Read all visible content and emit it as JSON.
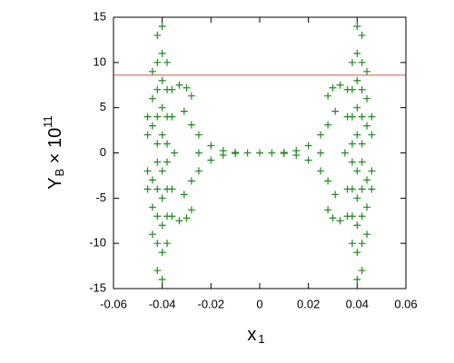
{
  "chart_data": {
    "type": "scatter",
    "xlabel": [
      "x",
      "1"
    ],
    "ylabel": [
      "Y",
      "B",
      " × 10",
      "11"
    ],
    "xlim": [
      -0.06,
      0.06
    ],
    "xticks": [
      -0.06,
      -0.04,
      -0.02,
      0,
      0.02,
      0.04,
      0.06
    ],
    "ylim": [
      -15,
      15
    ],
    "yticks": [
      -15,
      -10,
      -5,
      0,
      5,
      10,
      15
    ],
    "color": "#1f8a1f",
    "reference_line": {
      "y": 8.6,
      "color": "#e07a72"
    },
    "x": [
      -0.046,
      -0.046,
      -0.046,
      -0.046,
      -0.044,
      -0.044,
      -0.044,
      -0.044,
      -0.044,
      -0.044,
      -0.042,
      -0.042,
      -0.042,
      -0.042,
      -0.042,
      -0.042,
      -0.042,
      -0.042,
      -0.042,
      -0.042,
      -0.04,
      -0.04,
      -0.04,
      -0.04,
      -0.04,
      -0.04,
      -0.04,
      -0.04,
      -0.04,
      -0.04,
      -0.038,
      -0.038,
      -0.038,
      -0.038,
      -0.038,
      -0.038,
      -0.038,
      -0.038,
      -0.036,
      -0.036,
      -0.036,
      -0.036,
      -0.033,
      -0.033,
      -0.03,
      -0.03,
      -0.028,
      -0.028,
      -0.031,
      -0.031,
      -0.028,
      -0.028,
      -0.025,
      -0.025,
      -0.02,
      -0.02,
      -0.015,
      -0.015,
      -0.01,
      -0.01,
      -0.005,
      -0.035,
      -0.025,
      0,
      0.005,
      0.01,
      0.01,
      0.015,
      0.015,
      0.02,
      0.02,
      0.025,
      0.025,
      0.028,
      0.028,
      0.031,
      0.031,
      0.025,
      0.035,
      0.028,
      0.028,
      0.03,
      0.03,
      0.033,
      0.033,
      0.036,
      0.036,
      0.036,
      0.036,
      0.038,
      0.038,
      0.038,
      0.038,
      0.038,
      0.038,
      0.038,
      0.038,
      0.04,
      0.04,
      0.04,
      0.04,
      0.04,
      0.04,
      0.04,
      0.04,
      0.04,
      0.04,
      0.042,
      0.042,
      0.042,
      0.042,
      0.042,
      0.042,
      0.042,
      0.042,
      0.042,
      0.042,
      0.044,
      0.044,
      0.044,
      0.044,
      0.044,
      0.044,
      0.046,
      0.046,
      0.046,
      0.046
    ],
    "values": [
      -4,
      -2,
      2,
      4,
      -9,
      -6,
      -3,
      3,
      6,
      9,
      -13,
      -10,
      -7,
      -4,
      -1,
      1,
      4,
      7,
      10,
      13,
      -14,
      -11,
      -8,
      -5,
      -2,
      2,
      5,
      8,
      11,
      14,
      -10,
      -7,
      -4,
      -1,
      1,
      4,
      7,
      10,
      -7,
      -4,
      4,
      7,
      7.5,
      -7.5,
      7.2,
      -7.2,
      6.3,
      -6.3,
      4.6,
      -4.6,
      3.1,
      -3.1,
      2,
      -2,
      0.8,
      -0.8,
      0.25,
      -0.25,
      0.05,
      -0.05,
      0,
      0,
      0,
      0,
      0,
      0.05,
      -0.05,
      0.25,
      -0.25,
      0.8,
      -0.8,
      2,
      -2,
      3.1,
      -3.1,
      4.6,
      -4.6,
      0,
      0,
      6.3,
      -6.3,
      7.2,
      -7.2,
      7.5,
      -7.5,
      -7,
      -4,
      4,
      7,
      -10,
      -7,
      -4,
      -1,
      1,
      4,
      7,
      10,
      -14,
      -11,
      -8,
      -5,
      -2,
      2,
      5,
      8,
      11,
      14,
      -13,
      -10,
      -7,
      -4,
      -1,
      1,
      4,
      7,
      10,
      13,
      -9,
      -6,
      -3,
      3,
      6,
      9,
      -4,
      -2,
      2,
      4
    ]
  }
}
